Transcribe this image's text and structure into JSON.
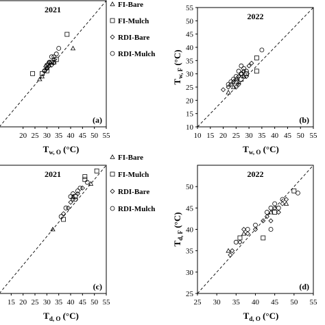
{
  "chart_data": [
    {
      "id": "a",
      "type": "scatter",
      "title": "2021",
      "panel_label": "(a)",
      "xlabel": {
        "main": "T",
        "sub": "w, O",
        "unit": " (°C)"
      },
      "ylabel": null,
      "xlim": [
        10,
        55
      ],
      "ylim": [
        10,
        55
      ],
      "xticks": [
        "20",
        "25",
        "30",
        "35",
        "40",
        "45",
        "50",
        "55"
      ],
      "yticks": [],
      "reference_line": "1:1",
      "legend_position": "right",
      "series": [
        {
          "name": "FI-Bare",
          "marker": "triangle",
          "points": [
            [
              41,
              38
            ],
            [
              30,
              31
            ],
            [
              28,
              28
            ],
            [
              27,
              27
            ],
            [
              33,
              33
            ],
            [
              31,
              32
            ]
          ]
        },
        {
          "name": "FI-Mulch",
          "marker": "square",
          "points": [
            [
              38.5,
              43
            ],
            [
              24,
              29
            ],
            [
              34,
              34
            ],
            [
              30,
              30
            ],
            [
              32,
              33
            ],
            [
              28,
              29
            ]
          ]
        },
        {
          "name": "RDI-Bare",
          "marker": "diamond",
          "points": [
            [
              30,
              31
            ],
            [
              31,
              33
            ],
            [
              32,
              32
            ],
            [
              29,
              30
            ],
            [
              33,
              34
            ],
            [
              30.5,
              32.5
            ],
            [
              29.5,
              31.5
            ]
          ]
        },
        {
          "name": "RDI-Mulch",
          "marker": "circle",
          "points": [
            [
              35,
              38
            ],
            [
              33,
              35
            ],
            [
              31,
              33
            ],
            [
              32,
              35
            ],
            [
              29,
              30
            ],
            [
              34,
              36
            ],
            [
              30,
              32
            ],
            [
              33,
              33
            ]
          ]
        }
      ]
    },
    {
      "id": "b",
      "type": "scatter",
      "title": "2022",
      "panel_label": "(b)",
      "xlabel": {
        "main": "T",
        "sub": "w, O",
        "unit": " (°C)"
      },
      "ylabel": {
        "main": "T",
        "sub": "w, F",
        "unit": " (°C)"
      },
      "xlim": [
        10,
        55
      ],
      "ylim": [
        10,
        55
      ],
      "xticks": [
        "10",
        "15",
        "20",
        "25",
        "30",
        "35",
        "40",
        "45",
        "50",
        "55"
      ],
      "yticks": [
        "10",
        "15",
        "20",
        "25",
        "30",
        "35",
        "40",
        "45",
        "50",
        "55"
      ],
      "reference_line": "1:1",
      "legend_position": "none",
      "series": [
        {
          "name": "FI-Bare",
          "marker": "triangle",
          "points": [
            [
              22,
              23
            ],
            [
              24,
              25
            ],
            [
              26,
              27
            ],
            [
              28,
              29
            ]
          ]
        },
        {
          "name": "FI-Mulch",
          "marker": "square",
          "points": [
            [
              33,
              36
            ],
            [
              33,
              31
            ],
            [
              25,
              27
            ],
            [
              27,
              28
            ],
            [
              29,
              30
            ]
          ]
        },
        {
          "name": "RDI-Bare",
          "marker": "diamond",
          "points": [
            [
              20,
              24
            ],
            [
              22,
              25
            ],
            [
              23,
              26
            ],
            [
              24,
              27
            ],
            [
              25,
              28
            ],
            [
              26,
              26
            ],
            [
              27,
              30
            ],
            [
              28,
              31
            ],
            [
              30,
              33
            ],
            [
              29,
              29
            ],
            [
              31,
              34
            ],
            [
              25,
              25
            ],
            [
              26,
              29
            ]
          ]
        },
        {
          "name": "RDI-Mulch",
          "marker": "circle",
          "points": [
            [
              35,
              39
            ],
            [
              27,
              33
            ],
            [
              24,
              28
            ],
            [
              25,
              29
            ],
            [
              26,
              31
            ],
            [
              28,
              32
            ],
            [
              22,
              26
            ],
            [
              23,
              27
            ],
            [
              27,
              30
            ],
            [
              29,
              31
            ]
          ]
        }
      ]
    },
    {
      "id": "c",
      "type": "scatter",
      "title": "2021",
      "panel_label": "(c)",
      "xlabel": {
        "main": "T",
        "sub": "d, O",
        "unit": " (°C)"
      },
      "ylabel": null,
      "xlim": [
        10,
        55
      ],
      "ylim": [
        10,
        55
      ],
      "xticks": [
        "15",
        "20",
        "25",
        "30",
        "35",
        "40",
        "45",
        "50",
        "55"
      ],
      "yticks": [],
      "reference_line": "1:1",
      "legend_position": "right",
      "series": [
        {
          "name": "FI-Bare",
          "marker": "triangle",
          "points": [
            [
              32.5,
              32.5
            ],
            [
              48.5,
              48.5
            ],
            [
              41,
              44
            ]
          ]
        },
        {
          "name": "FI-Mulch",
          "marker": "square",
          "points": [
            [
              46,
              51
            ],
            [
              46,
              50
            ],
            [
              51,
              53
            ],
            [
              37,
              36
            ],
            [
              42,
              44
            ]
          ]
        },
        {
          "name": "RDI-Bare",
          "marker": "diamond",
          "points": [
            [
              37,
              38
            ],
            [
              40,
              42
            ],
            [
              43,
              45
            ],
            [
              39,
              40
            ],
            [
              45,
              47
            ],
            [
              41,
              43
            ]
          ]
        },
        {
          "name": "RDI-Mulch",
          "marker": "circle",
          "points": [
            [
              41,
              45
            ],
            [
              44,
              47
            ],
            [
              36,
              37
            ],
            [
              38,
              40
            ],
            [
              42,
              43
            ],
            [
              40,
              44
            ],
            [
              47,
              49
            ],
            [
              43,
              46
            ]
          ]
        }
      ]
    },
    {
      "id": "d",
      "type": "scatter",
      "title": "2022",
      "panel_label": "(d)",
      "xlabel": {
        "main": "T",
        "sub": "d, O",
        "unit": " (°C)"
      },
      "ylabel": {
        "main": "T",
        "sub": "d, F",
        "unit": " (°C)"
      },
      "xlim": [
        25,
        55
      ],
      "ylim": [
        25,
        55
      ],
      "xticks": [
        "25",
        "30",
        "35",
        "40",
        "45",
        "50",
        "55"
      ],
      "yticks": [
        "25",
        "30",
        "35",
        "40",
        "45",
        "50"
      ],
      "reference_line": "1:1",
      "legend_position": "none",
      "series": [
        {
          "name": "FI-Bare",
          "marker": "triangle",
          "points": [
            [
              33,
              35
            ],
            [
              37,
              39
            ],
            [
              44,
              44
            ],
            [
              48,
              46
            ]
          ]
        },
        {
          "name": "FI-Mulch",
          "marker": "square",
          "points": [
            [
              42,
              38
            ],
            [
              45,
              44
            ],
            [
              50,
              49
            ],
            [
              36,
              38
            ]
          ]
        },
        {
          "name": "RDI-Bare",
          "marker": "diamond",
          "points": [
            [
              34,
              35
            ],
            [
              36,
              37
            ],
            [
              37,
              40
            ],
            [
              38,
              39
            ],
            [
              40,
              40
            ],
            [
              42,
              42
            ],
            [
              43,
              43
            ],
            [
              44,
              42
            ],
            [
              45,
              45
            ],
            [
              46,
              44
            ],
            [
              47,
              46
            ],
            [
              48,
              47
            ],
            [
              33.5,
              34
            ]
          ]
        },
        {
          "name": "RDI-Mulch",
          "marker": "circle",
          "points": [
            [
              51,
              48.5
            ],
            [
              45,
              46
            ],
            [
              46,
              45
            ],
            [
              44,
              45
            ],
            [
              47,
              47
            ],
            [
              43,
              44
            ],
            [
              40,
              41
            ],
            [
              38,
              40
            ],
            [
              35,
              37
            ],
            [
              44,
              40
            ]
          ]
        }
      ]
    }
  ]
}
